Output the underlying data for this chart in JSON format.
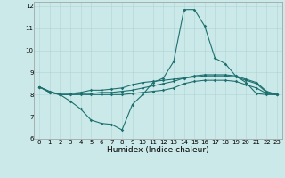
{
  "xlabel": "Humidex (Indice chaleur)",
  "xlim": [
    -0.5,
    23.5
  ],
  "ylim": [
    6,
    12.2
  ],
  "yticks": [
    6,
    7,
    8,
    9,
    10,
    11,
    12
  ],
  "xticks": [
    0,
    1,
    2,
    3,
    4,
    5,
    6,
    7,
    8,
    9,
    10,
    11,
    12,
    13,
    14,
    15,
    16,
    17,
    18,
    19,
    20,
    21,
    22,
    23
  ],
  "bg_color": "#cce9e9",
  "line_color": "#1e7070",
  "grid_color": "#aed4d4",
  "line1_x": [
    0,
    1,
    2,
    3,
    4,
    5,
    6,
    7,
    8,
    9,
    10,
    11,
    12,
    13,
    14,
    15,
    16,
    17,
    18,
    19,
    20,
    21,
    22,
    23
  ],
  "line1_y": [
    8.35,
    8.15,
    8.0,
    7.7,
    7.35,
    6.85,
    6.7,
    6.65,
    6.4,
    7.55,
    8.0,
    8.55,
    8.75,
    9.5,
    11.85,
    11.85,
    11.1,
    9.65,
    9.4,
    8.85,
    8.55,
    8.05,
    8.0,
    8.0
  ],
  "line2_x": [
    0,
    1,
    2,
    3,
    4,
    5,
    6,
    7,
    8,
    9,
    10,
    11,
    12,
    13,
    14,
    15,
    16,
    17,
    18,
    19,
    20,
    21,
    22,
    23
  ],
  "line2_y": [
    8.35,
    8.1,
    8.0,
    8.0,
    8.05,
    8.05,
    8.1,
    8.1,
    8.15,
    8.2,
    8.3,
    8.4,
    8.5,
    8.6,
    8.75,
    8.85,
    8.9,
    8.9,
    8.9,
    8.85,
    8.7,
    8.55,
    8.15,
    8.0
  ],
  "line3_x": [
    0,
    1,
    2,
    3,
    4,
    5,
    6,
    7,
    8,
    9,
    10,
    11,
    12,
    13,
    14,
    15,
    16,
    17,
    18,
    19,
    20,
    21,
    22,
    23
  ],
  "line3_y": [
    8.35,
    8.1,
    8.05,
    8.05,
    8.1,
    8.2,
    8.2,
    8.25,
    8.3,
    8.45,
    8.55,
    8.6,
    8.65,
    8.7,
    8.75,
    8.8,
    8.85,
    8.85,
    8.85,
    8.8,
    8.65,
    8.5,
    8.1,
    8.0
  ],
  "line4_x": [
    0,
    1,
    2,
    3,
    4,
    5,
    6,
    7,
    8,
    9,
    10,
    11,
    12,
    13,
    14,
    15,
    16,
    17,
    18,
    19,
    20,
    21,
    22,
    23
  ],
  "line4_y": [
    8.35,
    8.1,
    8.0,
    8.0,
    8.0,
    8.0,
    8.0,
    8.0,
    8.0,
    8.05,
    8.1,
    8.15,
    8.2,
    8.3,
    8.5,
    8.6,
    8.65,
    8.65,
    8.65,
    8.6,
    8.45,
    8.3,
    8.05,
    8.0
  ],
  "xlabel_fontsize": 6.5,
  "tick_fontsize": 5.0,
  "linewidth": 0.8,
  "markersize": 1.8
}
